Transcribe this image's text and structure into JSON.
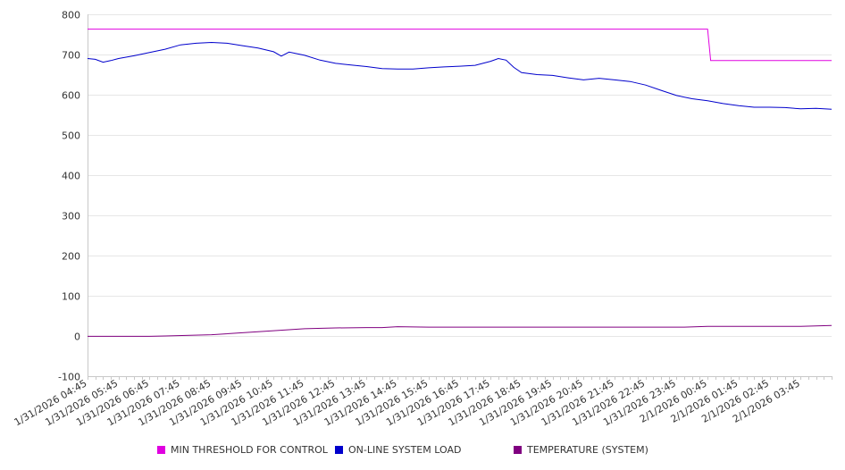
{
  "chart_data": {
    "type": "line",
    "ylim": [
      -100,
      800
    ],
    "y_ticks": [
      "800",
      "700",
      "600",
      "500",
      "400",
      "300",
      "200",
      "100",
      "0",
      "-100"
    ],
    "y_tick_values": [
      800,
      700,
      600,
      500,
      400,
      300,
      200,
      100,
      0,
      -100
    ],
    "x_tick_labels": [
      "1/31/2026 04:45",
      "1/31/2026 05:45",
      "1/31/2026 06:45",
      "1/31/2026 07:45",
      "1/31/2026 08:45",
      "1/31/2026 09:45",
      "1/31/2026 10:45",
      "1/31/2026 11:45",
      "1/31/2026 12:45",
      "1/31/2026 13:45",
      "1/31/2026 14:45",
      "1/31/2026 15:45",
      "1/31/2026 16:45",
      "1/31/2026 17:45",
      "1/31/2026 18:45",
      "1/31/2026 19:45",
      "1/31/2026 20:45",
      "1/31/2026 21:45",
      "1/31/2026 22:45",
      "1/31/2026 23:45",
      "2/1/2026 00:45",
      "2/1/2026 01:45",
      "2/1/2026 02:45",
      "2/1/2026 03:45"
    ],
    "grid": "horizontal",
    "legend_position": "bottom",
    "series": [
      {
        "name": "MIN THRESHOLD FOR CONTROL",
        "color": "#e000e0",
        "x": [
          "1/31/2026 04:45",
          "2/1/2026 00:45",
          "2/1/2026 00:51",
          "2/1/2026 04:45"
        ],
        "values": [
          763,
          763,
          685,
          685
        ]
      },
      {
        "name": "ON-LINE SYSTEM LOAD",
        "color": "#0000cc",
        "x": [
          "1/31/2026 04:45",
          "1/31/2026 05:00",
          "1/31/2026 05:15",
          "1/31/2026 05:30",
          "1/31/2026 05:45",
          "1/31/2026 06:15",
          "1/31/2026 06:45",
          "1/31/2026 07:15",
          "1/31/2026 07:45",
          "1/31/2026 08:15",
          "1/31/2026 08:45",
          "1/31/2026 09:15",
          "1/31/2026 09:45",
          "1/31/2026 10:15",
          "1/31/2026 10:45",
          "1/31/2026 11:00",
          "1/31/2026 11:15",
          "1/31/2026 11:45",
          "1/31/2026 12:15",
          "1/31/2026 12:45",
          "1/31/2026 13:15",
          "1/31/2026 13:45",
          "1/31/2026 14:15",
          "1/31/2026 14:45",
          "1/31/2026 15:15",
          "1/31/2026 15:45",
          "1/31/2026 16:15",
          "1/31/2026 16:45",
          "1/31/2026 17:15",
          "1/31/2026 17:45",
          "1/31/2026 18:00",
          "1/31/2026 18:15",
          "1/31/2026 18:30",
          "1/31/2026 18:45",
          "1/31/2026 19:15",
          "1/31/2026 19:45",
          "1/31/2026 20:15",
          "1/31/2026 20:45",
          "1/31/2026 21:15",
          "1/31/2026 21:45",
          "1/31/2026 22:15",
          "1/31/2026 22:45",
          "1/31/2026 23:15",
          "1/31/2026 23:45",
          "2/1/2026 00:15",
          "2/1/2026 00:45",
          "2/1/2026 01:15",
          "2/1/2026 01:45",
          "2/1/2026 02:15",
          "2/1/2026 02:45",
          "2/1/2026 03:15",
          "2/1/2026 03:45",
          "2/1/2026 04:15",
          "2/1/2026 04:45"
        ],
        "values": [
          690,
          688,
          681,
          685,
          690,
          697,
          705,
          713,
          724,
          728,
          730,
          728,
          722,
          716,
          707,
          696,
          706,
          698,
          686,
          678,
          674,
          670,
          665,
          664,
          664,
          667,
          669,
          671,
          673,
          683,
          690,
          686,
          668,
          655,
          650,
          648,
          642,
          637,
          641,
          637,
          633,
          624,
          611,
          598,
          590,
          585,
          578,
          573,
          569,
          569,
          568,
          565,
          566,
          564
        ]
      },
      {
        "name": "TEMPERATURE (SYSTEM)",
        "color": "#800080",
        "x": [
          "1/31/2026 04:45",
          "1/31/2026 06:45",
          "1/31/2026 07:15",
          "1/31/2026 08:45",
          "1/31/2026 09:45",
          "1/31/2026 10:45",
          "1/31/2026 11:45",
          "1/31/2026 12:45",
          "1/31/2026 13:45",
          "1/31/2026 14:15",
          "1/31/2026 14:45",
          "1/31/2026 15:45",
          "2/1/2026 00:00",
          "2/1/2026 00:45",
          "2/1/2026 03:45",
          "2/1/2026 04:15",
          "2/1/2026 04:45"
        ],
        "values": [
          -1,
          -1,
          0,
          3,
          8,
          13,
          18,
          20,
          21,
          21,
          23,
          22,
          22,
          24,
          24,
          25,
          26
        ]
      }
    ]
  }
}
